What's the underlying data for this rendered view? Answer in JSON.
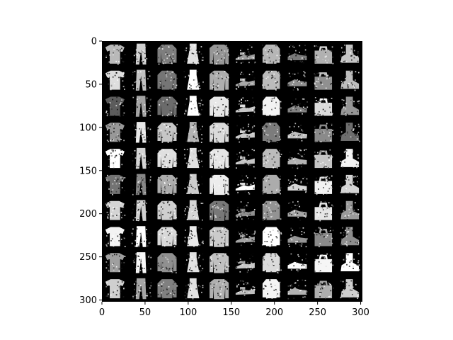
{
  "chart_data": {
    "type": "heatmap",
    "title": "",
    "xlabel": "",
    "ylabel": "",
    "xlim": [
      0,
      302
    ],
    "ylim": [
      302,
      0
    ],
    "grid": false,
    "colormap": "gray",
    "x_ticks": [
      0,
      50,
      100,
      150,
      200,
      250,
      300
    ],
    "y_ticks": [
      0,
      50,
      100,
      150,
      200,
      250,
      300
    ],
    "x_tick_labels": [
      "0",
      "50",
      "100",
      "150",
      "200",
      "250",
      "300"
    ],
    "y_tick_labels": [
      "0",
      "50",
      "100",
      "150",
      "200",
      "250",
      "300"
    ],
    "tile_grid": {
      "rows": 10,
      "cols": 10,
      "column_classes": [
        "tshirt",
        "trouser",
        "pullover",
        "dress",
        "coat",
        "sandal",
        "shirt",
        "sneaker",
        "bag",
        "ankle-boot"
      ]
    }
  }
}
